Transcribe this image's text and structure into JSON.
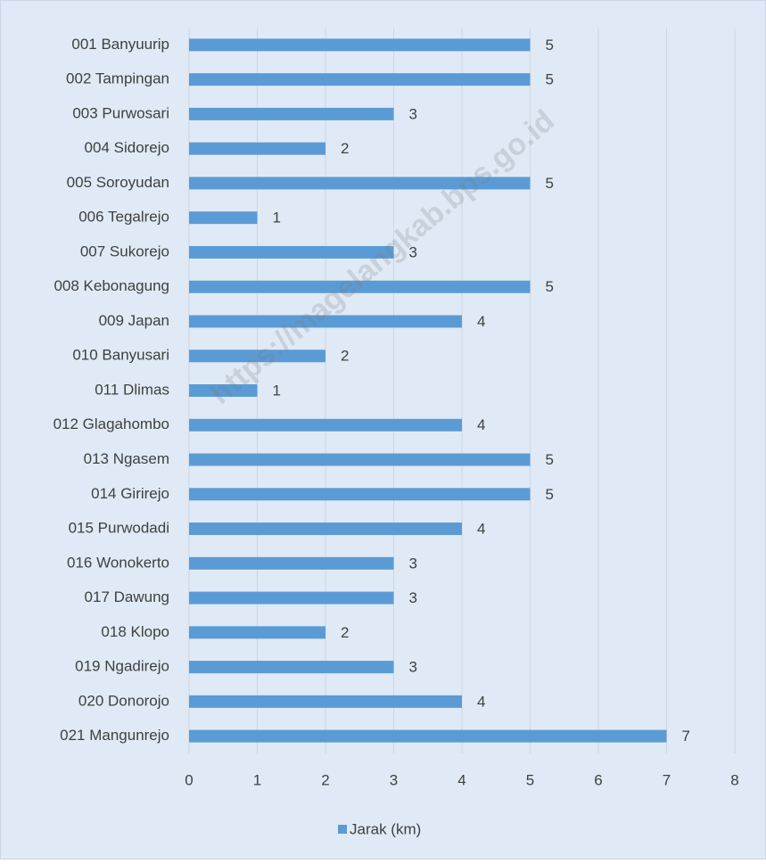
{
  "chart_data": {
    "type": "bar",
    "orientation": "horizontal",
    "categories": [
      "001 Banyuurip",
      "002 Tampingan",
      "003 Purwosari",
      "004 Sidorejo",
      "005 Soroyudan",
      "006 Tegalrejo",
      "007 Sukorejo",
      "008 Kebonagung",
      "009 Japan",
      "010 Banyusari",
      "011 Dlimas",
      "012 Glagahombo",
      "013 Ngasem",
      "014 Girirejo",
      "015 Purwodadi",
      "016 Wonokerto",
      "017 Dawung",
      "018 Klopo",
      "019 Ngadirejo",
      "020 Donorojo",
      "021 Mangunrejo"
    ],
    "series": [
      {
        "name": "Jarak (km)",
        "color": "#5b9bd5",
        "values": [
          5,
          5,
          3,
          2,
          5,
          1,
          3,
          5,
          4,
          2,
          1,
          4,
          5,
          5,
          4,
          3,
          3,
          2,
          3,
          4,
          7
        ]
      }
    ],
    "xlim": [
      0,
      8
    ],
    "xticks": [
      0,
      1,
      2,
      3,
      4,
      5,
      6,
      7,
      8
    ],
    "grid": true,
    "legend": "bottom",
    "watermark": "https://magelangkab.bps.go.id"
  }
}
